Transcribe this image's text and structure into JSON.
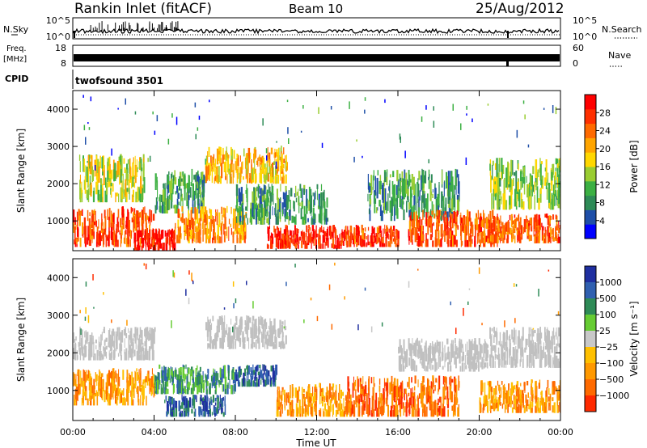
{
  "header": {
    "station": "Rankin Inlet (fitACF)",
    "beam": "Beam 10",
    "date": "25/Aug/2012"
  },
  "panels": {
    "nsky": {
      "label": "N.Sky",
      "ticks_left": [
        "10^5",
        "10^0"
      ],
      "label_right": "N.Search",
      "ticks_right": [
        "10^5",
        "10^0"
      ]
    },
    "freq": {
      "label_top": "Freq.",
      "label_unit": "[MHz]",
      "ticks_left": [
        "18",
        "8"
      ],
      "label_right": "Nave",
      "ticks_right": [
        "60",
        "0"
      ]
    },
    "cpid": {
      "label": "CPID",
      "value": "twofsound 3501"
    }
  },
  "colors": {
    "power_scale": [
      "#0000ff",
      "#1f4fa8",
      "#2e8b57",
      "#3cb043",
      "#9acd32",
      "#ffd700",
      "#ffa500",
      "#ff6a00",
      "#ff3000",
      "#ff0000"
    ],
    "velocity_scale": [
      "#1f2fa0",
      "#3060b0",
      "#2e8b57",
      "#66cc33",
      "#c8c8c8",
      "#ffc000",
      "#ff9900",
      "#ff6a00",
      "#ff2a00"
    ],
    "ground_scatter": "#c0c0c0"
  },
  "chart_data": [
    {
      "type": "heatmap",
      "title": "Power",
      "xlabel": "Time UT",
      "ylabel": "Slant Range [km]",
      "x_ticks": [
        "00:00",
        "04:00",
        "08:00",
        "12:00",
        "16:00",
        "20:00",
        "00:00"
      ],
      "xlim_hours": [
        0,
        24
      ],
      "y_ticks": [
        1000,
        2000,
        3000,
        4000
      ],
      "ylim": [
        200,
        4500
      ],
      "colorbar": {
        "label": "Power [dB]",
        "ticks": [
          4,
          8,
          12,
          16,
          20,
          24,
          28
        ],
        "range": [
          0,
          32
        ]
      },
      "regions": [
        {
          "t0": 0.0,
          "t1": 4.0,
          "r0": 300,
          "r1": 1400,
          "value": 26
        },
        {
          "t0": 0.3,
          "t1": 3.5,
          "r0": 1500,
          "r1": 2800,
          "value": 16
        },
        {
          "t0": 3.0,
          "t1": 5.0,
          "r0": 200,
          "r1": 800,
          "value": 30
        },
        {
          "t0": 4.0,
          "t1": 6.5,
          "r0": 1200,
          "r1": 2400,
          "value": 10
        },
        {
          "t0": 5.0,
          "t1": 8.5,
          "r0": 400,
          "r1": 1400,
          "value": 22
        },
        {
          "t0": 6.5,
          "t1": 10.5,
          "r0": 2000,
          "r1": 3000,
          "value": 20
        },
        {
          "t0": 8.0,
          "t1": 12.5,
          "r0": 900,
          "r1": 2000,
          "value": 10
        },
        {
          "t0": 9.5,
          "t1": 13.5,
          "r0": 250,
          "r1": 900,
          "value": 28
        },
        {
          "t0": 13.5,
          "t1": 16.0,
          "r0": 300,
          "r1": 900,
          "value": 27
        },
        {
          "t0": 14.5,
          "t1": 19.0,
          "r0": 1000,
          "r1": 2400,
          "value": 9
        },
        {
          "t0": 16.5,
          "t1": 21.0,
          "r0": 300,
          "r1": 1300,
          "value": 26
        },
        {
          "t0": 20.0,
          "t1": 24.0,
          "r0": 400,
          "r1": 1200,
          "value": 25
        },
        {
          "t0": 20.5,
          "t1": 24.0,
          "r0": 1300,
          "r1": 2700,
          "value": 14
        }
      ]
    },
    {
      "type": "heatmap",
      "title": "Velocity",
      "xlabel": "Time UT",
      "ylabel": "Slant Range [km]",
      "x_ticks": [
        "00:00",
        "04:00",
        "08:00",
        "12:00",
        "16:00",
        "20:00",
        "00:00"
      ],
      "xlim_hours": [
        0,
        24
      ],
      "y_ticks": [
        1000,
        2000,
        3000,
        4000
      ],
      "ylim": [
        200,
        4500
      ],
      "colorbar": {
        "label": "Velocity [m s⁻¹]",
        "ticks": [
          "1000",
          "500",
          "100",
          "25",
          "−25",
          "−100",
          "−500",
          "−1000"
        ]
      },
      "regions": [
        {
          "t0": 0.0,
          "t1": 4.0,
          "r0": 1800,
          "r1": 2700,
          "class": "ground"
        },
        {
          "t0": 0.0,
          "t1": 4.0,
          "r0": 600,
          "r1": 1600,
          "class": "neg100"
        },
        {
          "t0": 4.0,
          "t1": 8.0,
          "r0": 900,
          "r1": 1700,
          "class": "pos100"
        },
        {
          "t0": 4.5,
          "t1": 7.5,
          "r0": 300,
          "r1": 900,
          "class": "pos500"
        },
        {
          "t0": 6.5,
          "t1": 10.5,
          "r0": 2100,
          "r1": 3000,
          "class": "ground"
        },
        {
          "t0": 8.0,
          "t1": 10.0,
          "r0": 1100,
          "r1": 1700,
          "class": "pos500"
        },
        {
          "t0": 10.0,
          "t1": 13.5,
          "r0": 300,
          "r1": 1200,
          "class": "neg100"
        },
        {
          "t0": 13.5,
          "t1": 19.0,
          "r0": 300,
          "r1": 1400,
          "class": "neg500"
        },
        {
          "t0": 16.0,
          "t1": 20.5,
          "r0": 1500,
          "r1": 2400,
          "class": "ground"
        },
        {
          "t0": 20.0,
          "t1": 24.0,
          "r0": 400,
          "r1": 1300,
          "class": "neg100"
        },
        {
          "t0": 20.5,
          "t1": 24.0,
          "r0": 1600,
          "r1": 2700,
          "class": "ground"
        }
      ]
    }
  ]
}
